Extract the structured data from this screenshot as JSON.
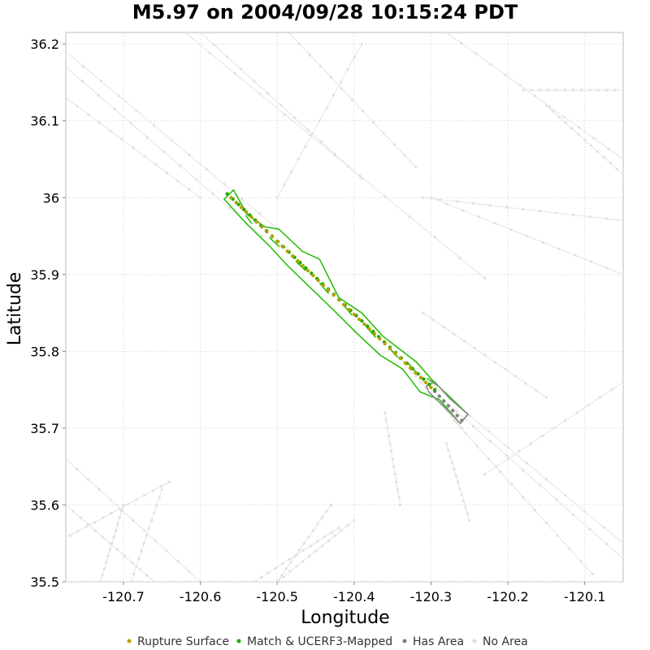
{
  "chart_data": {
    "type": "scatter",
    "title": "M5.97 on 2004/09/28 10:15:24 PDT",
    "xlabel": "Longitude",
    "ylabel": "Latitude",
    "xlim": [
      -120.775,
      -120.05
    ],
    "ylim": [
      35.5,
      36.215
    ],
    "xticks": [
      -120.7,
      -120.6,
      -120.5,
      -120.4,
      -120.3,
      -120.2,
      -120.1
    ],
    "yticks": [
      35.5,
      35.6,
      35.7,
      35.8,
      35.9,
      36.0,
      36.1,
      36.2
    ],
    "xtick_labels": [
      "-120.7",
      "-120.6",
      "-120.5",
      "-120.4",
      "-120.3",
      "-120.2",
      "-120.1"
    ],
    "ytick_labels": [
      "35.5",
      "35.6",
      "35.7",
      "35.8",
      "35.9",
      "36",
      "36.1",
      "36.2"
    ],
    "grid": true,
    "legend_position": "bottom",
    "legend": [
      {
        "label": "Rupture Surface",
        "color": "#b8a000"
      },
      {
        "label": "Match & UCERF3-Mapped",
        "color": "#22aa00"
      },
      {
        "label": "Has Area",
        "color": "#808080"
      },
      {
        "label": "No Area",
        "color": "#dddddd"
      }
    ],
    "background_faults": [
      [
        [
          -120.775,
          36.19
        ],
        [
          -120.5,
          35.96
        ]
      ],
      [
        [
          -120.775,
          36.17
        ],
        [
          -120.52,
          35.95
        ]
      ],
      [
        [
          -120.775,
          36.13
        ],
        [
          -120.6,
          36.0
        ]
      ],
      [
        [
          -120.62,
          36.215
        ],
        [
          -120.23,
          35.895
        ]
      ],
      [
        [
          -120.6,
          36.215
        ],
        [
          -120.39,
          36.025
        ]
      ],
      [
        [
          -120.485,
          36.215
        ],
        [
          -120.32,
          36.04
        ]
      ],
      [
        [
          -120.39,
          36.2
        ],
        [
          -120.5,
          36.0
        ]
      ],
      [
        [
          -120.28,
          36.215
        ],
        [
          -120.05,
          36.05
        ]
      ],
      [
        [
          -120.18,
          36.14
        ],
        [
          -120.05,
          36.14
        ]
      ],
      [
        [
          -120.15,
          36.12
        ],
        [
          -120.05,
          36.03
        ]
      ],
      [
        [
          -120.31,
          36.0
        ],
        [
          -120.05,
          35.97
        ]
      ],
      [
        [
          -120.3,
          36.0
        ],
        [
          -120.05,
          35.9
        ]
      ],
      [
        [
          -120.35,
          35.8
        ],
        [
          -120.05,
          35.55
        ]
      ],
      [
        [
          -120.31,
          35.76
        ],
        [
          -120.05,
          35.53
        ]
      ],
      [
        [
          -120.27,
          35.71
        ],
        [
          -120.09,
          35.51
        ]
      ],
      [
        [
          -120.31,
          35.85
        ],
        [
          -120.15,
          35.74
        ]
      ],
      [
        [
          -120.5,
          35.5
        ],
        [
          -120.4,
          35.58
        ]
      ],
      [
        [
          -120.53,
          35.5
        ],
        [
          -120.42,
          35.57
        ]
      ],
      [
        [
          -120.775,
          35.66
        ],
        [
          -120.6,
          35.5
        ]
      ],
      [
        [
          -120.775,
          35.6
        ],
        [
          -120.66,
          35.5
        ]
      ],
      [
        [
          -120.73,
          35.5
        ],
        [
          -120.7,
          35.6
        ]
      ],
      [
        [
          -120.69,
          35.5
        ],
        [
          -120.65,
          35.62
        ]
      ],
      [
        [
          -120.77,
          35.56
        ],
        [
          -120.64,
          35.63
        ]
      ],
      [
        [
          -120.43,
          35.6
        ],
        [
          -120.5,
          35.5
        ]
      ],
      [
        [
          -120.36,
          35.72
        ],
        [
          -120.34,
          35.6
        ]
      ],
      [
        [
          -120.28,
          35.68
        ],
        [
          -120.25,
          35.58
        ]
      ],
      [
        [
          -120.23,
          35.64
        ],
        [
          -120.05,
          35.76
        ]
      ],
      [
        [
          -120.34,
          35.79
        ],
        [
          -120.26,
          35.7
        ]
      ]
    ],
    "rupture_outline": [
      [
        -120.557,
        36.01
      ],
      [
        -120.539,
        35.978
      ],
      [
        -120.516,
        35.962
      ],
      [
        -120.498,
        35.959
      ],
      [
        -120.467,
        35.93
      ],
      [
        -120.445,
        35.92
      ],
      [
        -120.42,
        35.87
      ],
      [
        -120.39,
        35.85
      ],
      [
        -120.363,
        35.82
      ],
      [
        -120.337,
        35.8
      ],
      [
        -120.319,
        35.786
      ],
      [
        -120.296,
        35.76
      ],
      [
        -120.277,
        35.742
      ],
      [
        -120.252,
        35.718
      ],
      [
        -120.262,
        35.706
      ],
      [
        -120.289,
        35.737
      ],
      [
        -120.314,
        35.747
      ],
      [
        -120.337,
        35.777
      ],
      [
        -120.366,
        35.795
      ],
      [
        -120.397,
        35.824
      ],
      [
        -120.428,
        35.855
      ],
      [
        -120.456,
        35.882
      ],
      [
        -120.487,
        35.912
      ],
      [
        -120.511,
        35.938
      ],
      [
        -120.54,
        35.966
      ],
      [
        -120.569,
        35.998
      ]
    ],
    "green_dividers": [
      [
        [
          -120.541,
          35.977
        ],
        [
          -120.533,
          35.966
        ]
      ],
      [
        [
          -120.51,
          35.948
        ],
        [
          -120.497,
          35.936
        ]
      ],
      [
        [
          -120.476,
          35.917
        ],
        [
          -120.463,
          35.905
        ]
      ],
      [
        [
          -120.445,
          35.889
        ],
        [
          -120.433,
          35.875
        ]
      ],
      [
        [
          -120.415,
          35.862
        ],
        [
          -120.403,
          35.847
        ]
      ],
      [
        [
          -120.385,
          35.833
        ],
        [
          -120.372,
          35.818
        ]
      ],
      [
        [
          -120.355,
          35.805
        ],
        [
          -120.343,
          35.792
        ]
      ],
      [
        [
          -120.33,
          35.785
        ],
        [
          -120.318,
          35.771
        ]
      ],
      [
        [
          -120.305,
          35.765
        ],
        [
          -120.291,
          35.755
        ]
      ]
    ],
    "has_area_outline": [
      [
        -120.306,
        35.755
      ],
      [
        -120.295,
        35.76
      ],
      [
        -120.275,
        35.738
      ],
      [
        -120.252,
        35.718
      ],
      [
        -120.262,
        35.706
      ],
      [
        -120.281,
        35.726
      ],
      [
        -120.303,
        35.747
      ]
    ],
    "rupture_surface_points": {
      "x": [
        -120.56,
        -120.3
      ],
      "y": [
        36.0,
        35.753
      ],
      "count": 40
    },
    "match_points": {
      "x": [
        -120.565,
        -120.295
      ],
      "y": [
        36.005,
        35.75
      ],
      "count": 38
    },
    "has_area_points": {
      "x": [
        -120.295,
        -120.26
      ],
      "y": [
        35.748,
        35.71
      ],
      "count": 7
    }
  }
}
